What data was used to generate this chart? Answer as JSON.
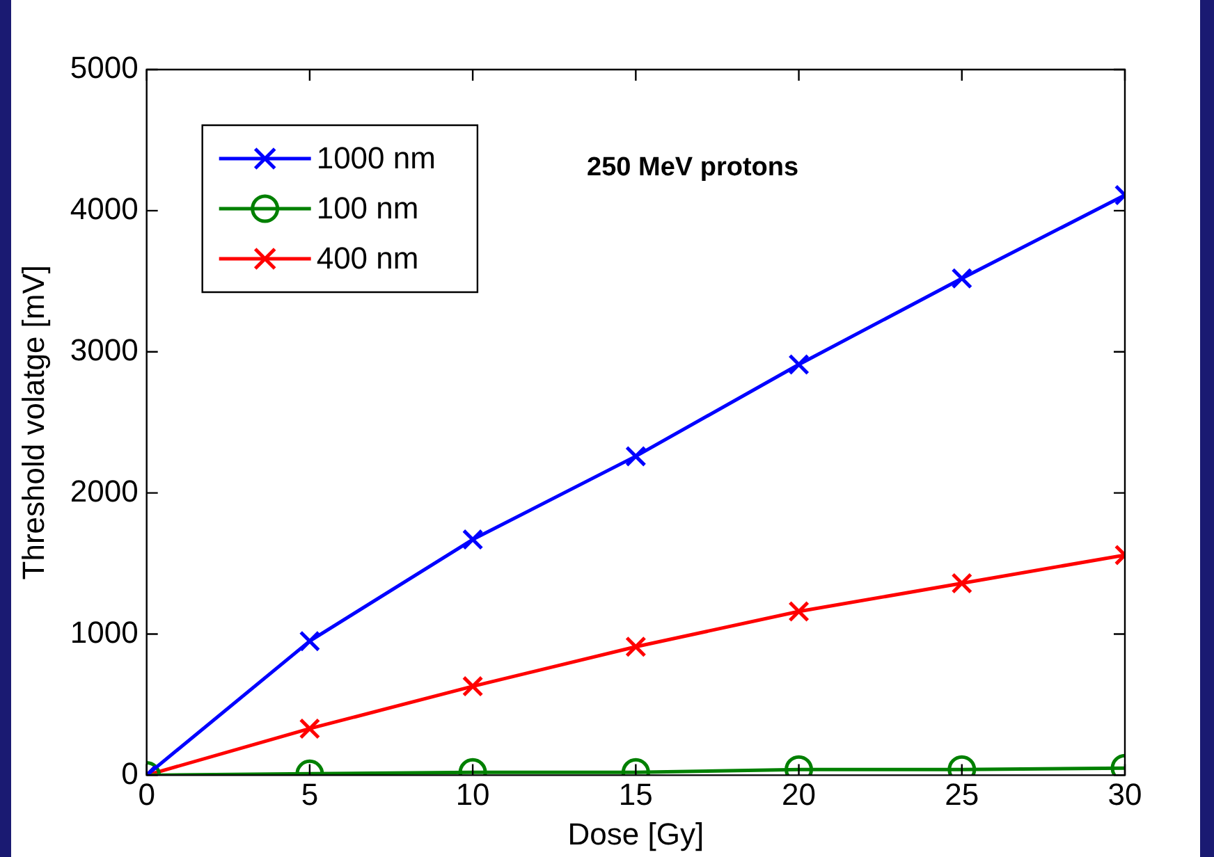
{
  "chart_data": {
    "type": "line",
    "xlabel": "Dose [Gy]",
    "ylabel": "Threshold volatge [mV]",
    "annotations": [
      "250 MeV protons"
    ],
    "x": [
      0,
      5,
      10,
      15,
      20,
      25,
      30
    ],
    "series": [
      {
        "name": "1000 nm",
        "color": "#0000ff",
        "marker": "cross",
        "values": [
          0,
          950,
          1670,
          2260,
          2910,
          3520,
          4110
        ]
      },
      {
        "name": "100 nm",
        "color": "#008000",
        "marker": "circle",
        "values": [
          0,
          10,
          20,
          20,
          40,
          40,
          50
        ]
      },
      {
        "name": "400 nm",
        "color": "#ff0000",
        "marker": "cross",
        "values": [
          0,
          330,
          630,
          910,
          1160,
          1360,
          1560
        ]
      }
    ],
    "xlim": [
      0,
      30
    ],
    "xticks": [
      0,
      5,
      10,
      15,
      20,
      25,
      30
    ],
    "ylim": [
      0,
      5000
    ],
    "yticks": [
      0,
      1000,
      2000,
      3000,
      4000,
      5000
    ],
    "grid": false,
    "legend": "top left",
    "line_style": "solid"
  }
}
